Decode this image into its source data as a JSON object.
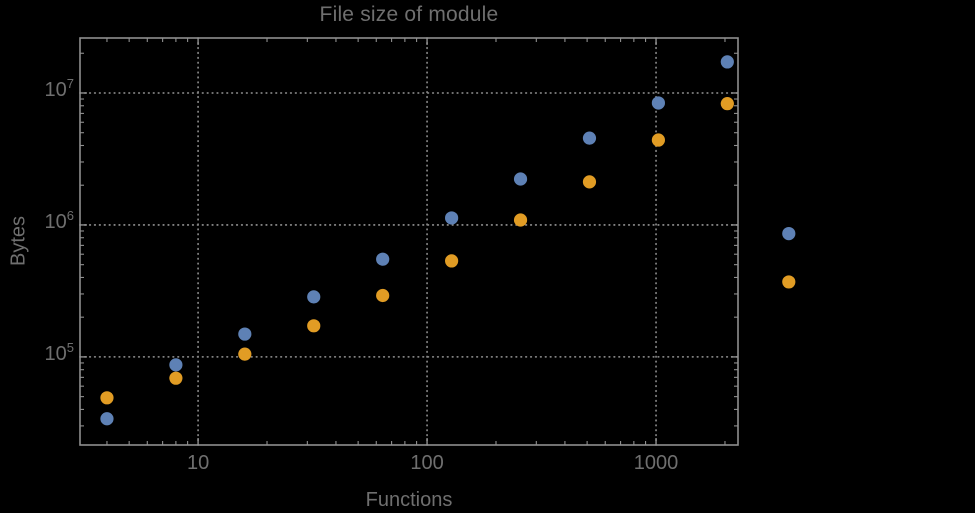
{
  "title": "File size of module",
  "colors": {
    "background": "#000000",
    "frame": "#8f8f8f",
    "grid": "#848484",
    "text": "#6f6f6f",
    "series_blue": "#5E81B5",
    "series_orange": "#E19C24"
  },
  "chart_data": {
    "type": "scatter",
    "title": "File size of module",
    "xlabel": "Functions",
    "ylabel": "Bytes",
    "x_scale": "log",
    "y_scale": "log",
    "grid": "dotted",
    "xlim": [
      3.05,
      2280
    ],
    "ylim": [
      21500,
      26100000
    ],
    "x": [
      4,
      8,
      16,
      32,
      64,
      128,
      256,
      512,
      1024,
      2048
    ],
    "series": [
      {
        "name": "blue-series",
        "color": "#5E81B5",
        "values": [
          34000,
          87000,
          149000,
          285000,
          550000,
          1130000,
          2230000,
          4550000,
          8400000,
          17200000
        ]
      },
      {
        "name": "orange-series",
        "color": "#E19C24",
        "values": [
          49000,
          69000,
          105000,
          172000,
          292000,
          534000,
          1090000,
          2120000,
          4400000,
          8300000
        ]
      }
    ],
    "x_ticks": [
      {
        "label": "10",
        "value": 10
      },
      {
        "label": "100",
        "value": 100
      },
      {
        "label": "1000",
        "value": 1000
      }
    ],
    "y_ticks": [
      {
        "base": "10",
        "exp": "5",
        "value": 100000
      },
      {
        "base": "10",
        "exp": "6",
        "value": 1000000
      },
      {
        "base": "10",
        "exp": "7",
        "value": 10000000
      }
    ],
    "legend_markers": [
      {
        "name": "blue-legend-marker",
        "color": "#5E81B5",
        "x": 3800,
        "y": 860000
      },
      {
        "name": "orange-legend-marker",
        "color": "#E19C24",
        "x": 3800,
        "y": 370000
      }
    ]
  }
}
